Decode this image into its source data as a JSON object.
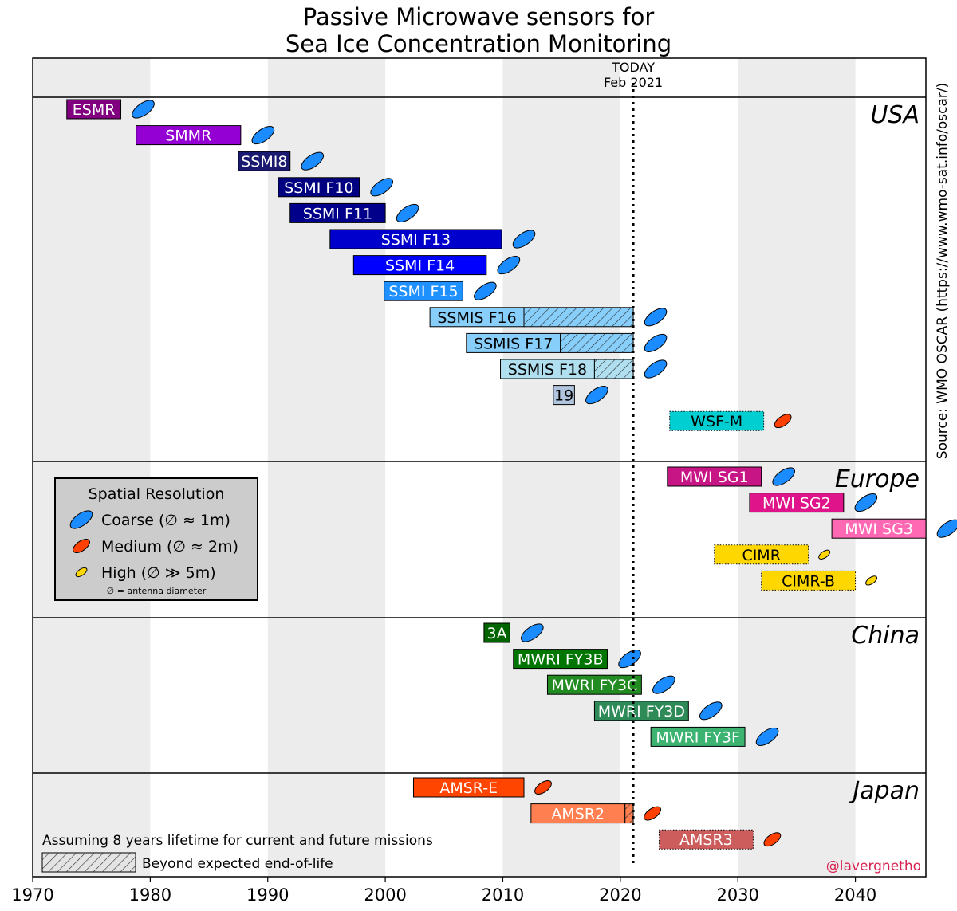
{
  "chart_data": {
    "type": "timeline",
    "title_lines": [
      "Passive Microwave sensors for",
      "Sea Ice Concentration Monitoring"
    ],
    "xlim": [
      1970,
      2046
    ],
    "x_ticks": [
      1970,
      1980,
      1990,
      2000,
      2010,
      2020,
      2030,
      2040
    ],
    "today_label": "TODAY",
    "today_date": "Feb 2021",
    "today_year": 2021.1,
    "source_text": "Source: WMO OSCAR (https://www.wmo-sat.info/oscar/)",
    "credit": "@lavergnetho",
    "colors": {
      "coarse": "#1a8cff",
      "medium": "#ff4000",
      "high": "#ffd700",
      "shade": "#ececec",
      "credit": "#d6204f"
    },
    "regions": [
      {
        "name": "USA",
        "rows": 13
      },
      {
        "name": "Europe",
        "rows": 6
      },
      {
        "name": "China",
        "rows": 6
      },
      {
        "name": "Japan",
        "rows": 3
      }
    ],
    "missions": [
      {
        "region": 0,
        "row": 0,
        "label": "ESMR",
        "start": 1972.9,
        "end": 1977.5,
        "color": "#800080",
        "text": "#ffffff",
        "res": "coarse"
      },
      {
        "region": 0,
        "row": 1,
        "label": "SMMR",
        "start": 1978.8,
        "end": 1987.7,
        "color": "#9400d3",
        "text": "#ffffff",
        "res": "coarse"
      },
      {
        "region": 0,
        "row": 2,
        "label": "SSMI8",
        "start": 1987.5,
        "end": 1991.9,
        "color": "#191970",
        "text": "#ffffff",
        "res": "coarse"
      },
      {
        "region": 0,
        "row": 3,
        "label": "SSMI F10",
        "start": 1990.9,
        "end": 1997.8,
        "color": "#000080",
        "text": "#ffffff",
        "res": "coarse"
      },
      {
        "region": 0,
        "row": 4,
        "label": "SSMI F11",
        "start": 1991.9,
        "end": 2000.0,
        "color": "#00008b",
        "text": "#ffffff",
        "res": "coarse"
      },
      {
        "region": 0,
        "row": 5,
        "label": "SSMI F13",
        "start": 1995.3,
        "end": 2009.9,
        "color": "#0000cd",
        "text": "#ffffff",
        "res": "coarse"
      },
      {
        "region": 0,
        "row": 6,
        "label": "SSMI F14",
        "start": 1997.3,
        "end": 2008.6,
        "color": "#0000ff",
        "text": "#ffffff",
        "res": "coarse"
      },
      {
        "region": 0,
        "row": 7,
        "label": "SSMI F15",
        "start": 1999.9,
        "end": 2006.6,
        "color": "#1e90ff",
        "text": "#ffffff",
        "res": "coarse"
      },
      {
        "region": 0,
        "row": 8,
        "label": "SSMIS F16",
        "start": 2003.8,
        "end": 2011.8,
        "hatch_end": 2021.1,
        "color": "#87cefa",
        "text": "#000000",
        "res": "coarse"
      },
      {
        "region": 0,
        "row": 9,
        "label": "SSMIS F17",
        "start": 2006.9,
        "end": 2014.9,
        "hatch_end": 2021.1,
        "color": "#87cefa",
        "text": "#000000",
        "res": "coarse"
      },
      {
        "region": 0,
        "row": 10,
        "label": "SSMIS F18",
        "start": 2009.8,
        "end": 2017.8,
        "hatch_end": 2021.1,
        "color": "#b0dff0",
        "text": "#000000",
        "res": "coarse"
      },
      {
        "region": 0,
        "row": 11,
        "label": "19",
        "start": 2014.3,
        "end": 2016.1,
        "color": "#b0c4de",
        "text": "#000000",
        "res": "coarse"
      },
      {
        "region": 0,
        "row": 12,
        "label": "WSF-M",
        "start": 2024.2,
        "end": 2032.2,
        "color": "#00ced1",
        "text": "#000000",
        "res": "medium",
        "dotted": true
      },
      {
        "region": 1,
        "row": 0,
        "label": "MWI SG1",
        "start": 2024.0,
        "end": 2032.0,
        "color": "#c71585",
        "text": "#ffffff",
        "res": "coarse"
      },
      {
        "region": 1,
        "row": 1,
        "label": "MWI SG2",
        "start": 2031.0,
        "end": 2039.0,
        "color": "#e0148a",
        "text": "#ffffff",
        "res": "coarse"
      },
      {
        "region": 1,
        "row": 2,
        "label": "MWI SG3",
        "start": 2038.0,
        "end": 2046.0,
        "color": "#ff69b4",
        "text": "#ffffff",
        "res": "coarse"
      },
      {
        "region": 1,
        "row": 3,
        "label": "CIMR",
        "start": 2028.0,
        "end": 2036.0,
        "color": "#ffd700",
        "text": "#000000",
        "res": "high",
        "dotted": true
      },
      {
        "region": 1,
        "row": 4,
        "label": "CIMR-B",
        "start": 2032.0,
        "end": 2040.0,
        "color": "#ffd700",
        "text": "#000000",
        "res": "high",
        "dotted": true
      },
      {
        "region": 2,
        "row": 0,
        "label": "3A",
        "start": 2008.4,
        "end": 2010.6,
        "color": "#006400",
        "text": "#ffffff",
        "res": "coarse"
      },
      {
        "region": 2,
        "row": 1,
        "label": "MWRI FY3B",
        "start": 2010.9,
        "end": 2018.9,
        "color": "#007500",
        "text": "#ffffff",
        "res": "coarse"
      },
      {
        "region": 2,
        "row": 2,
        "label": "MWRI FY3C",
        "start": 2013.8,
        "end": 2021.8,
        "color": "#228b22",
        "text": "#ffffff",
        "res": "coarse"
      },
      {
        "region": 2,
        "row": 3,
        "label": "MWRI FY3D",
        "start": 2017.8,
        "end": 2025.8,
        "color": "#2e8b57",
        "text": "#ffffff",
        "res": "coarse"
      },
      {
        "region": 2,
        "row": 4,
        "label": "MWRI FY3F",
        "start": 2022.6,
        "end": 2030.6,
        "color": "#3cb371",
        "text": "#ffffff",
        "res": "coarse"
      },
      {
        "region": 3,
        "row": 0,
        "label": "AMSR-E",
        "start": 2002.4,
        "end": 2011.8,
        "color": "#ff4500",
        "text": "#ffffff",
        "res": "medium"
      },
      {
        "region": 3,
        "row": 1,
        "label": "AMSR2",
        "start": 2012.4,
        "end": 2020.4,
        "hatch_end": 2021.1,
        "color": "#ff7f50",
        "text": "#ffffff",
        "res": "medium"
      },
      {
        "region": 3,
        "row": 2,
        "label": "AMSR3",
        "start": 2023.3,
        "end": 2031.3,
        "color": "#cd5c5c",
        "text": "#ffffff",
        "res": "medium",
        "dotted": true
      }
    ],
    "legend": {
      "title": "Spatial Resolution",
      "items": [
        {
          "res": "coarse",
          "label": "Coarse (∅ ≈ 1m)"
        },
        {
          "res": "medium",
          "label": "Medium (∅ ≈ 2m)"
        },
        {
          "res": "high",
          "label": "High (∅ ≫ 5m)"
        }
      ],
      "note": "∅ = antenna diameter"
    },
    "lifetime_note": "Assuming 8 years lifetime for current and future missions",
    "hatch_legend": "Beyond expected end-of-life"
  }
}
